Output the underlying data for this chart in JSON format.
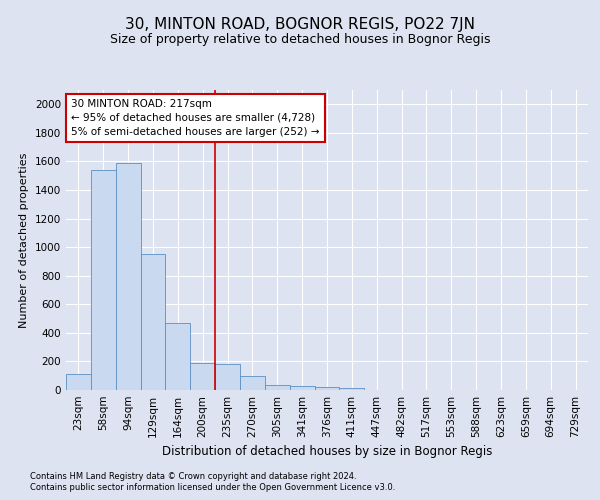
{
  "title": "30, MINTON ROAD, BOGNOR REGIS, PO22 7JN",
  "subtitle": "Size of property relative to detached houses in Bognor Regis",
  "xlabel": "Distribution of detached houses by size in Bognor Regis",
  "ylabel": "Number of detached properties",
  "footer_line1": "Contains HM Land Registry data © Crown copyright and database right 2024.",
  "footer_line2": "Contains public sector information licensed under the Open Government Licence v3.0.",
  "bin_labels": [
    "23sqm",
    "58sqm",
    "94sqm",
    "129sqm",
    "164sqm",
    "200sqm",
    "235sqm",
    "270sqm",
    "305sqm",
    "341sqm",
    "376sqm",
    "411sqm",
    "447sqm",
    "482sqm",
    "517sqm",
    "553sqm",
    "588sqm",
    "623sqm",
    "659sqm",
    "694sqm",
    "729sqm"
  ],
  "bar_heights": [
    110,
    1540,
    1590,
    950,
    470,
    190,
    185,
    95,
    35,
    25,
    20,
    15,
    0,
    0,
    0,
    0,
    0,
    0,
    0,
    0,
    0
  ],
  "bar_color": "#c9d9f0",
  "bar_edge_color": "#5a8fc4",
  "annotation_box_text": "30 MINTON ROAD: 217sqm\n← 95% of detached houses are smaller (4,728)\n5% of semi-detached houses are larger (252) →",
  "annotation_box_color": "#ffffff",
  "annotation_box_edge_color": "#cc0000",
  "vline_x_index": 5.5,
  "vline_color": "#cc0000",
  "ylim": [
    0,
    2100
  ],
  "yticks": [
    0,
    200,
    400,
    600,
    800,
    1000,
    1200,
    1400,
    1600,
    1800,
    2000
  ],
  "background_color": "#dde3f0",
  "plot_background_color": "#dde3f0",
  "grid_color": "#ffffff",
  "title_fontsize": 11,
  "subtitle_fontsize": 9,
  "xlabel_fontsize": 8.5,
  "ylabel_fontsize": 8,
  "tick_fontsize": 7.5,
  "footer_fontsize": 6
}
